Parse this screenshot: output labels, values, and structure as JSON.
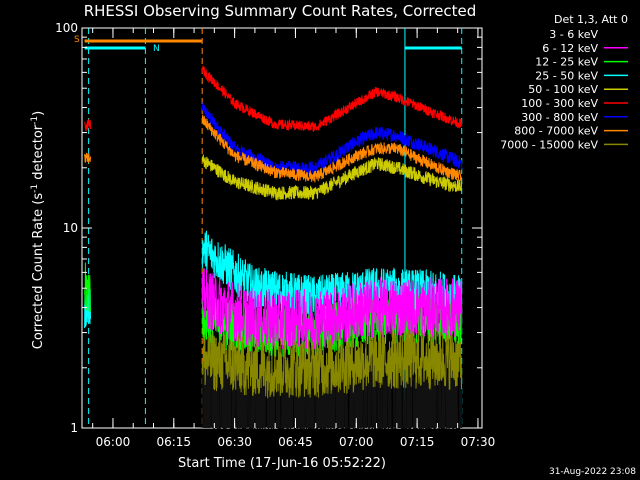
{
  "chart_data": {
    "type": "line",
    "title": "RHESSI Observing Summary Count Rates, Corrected",
    "ylabel": "Corrected Count Rate (s^-1 detector^-1)",
    "xlabel": "Start Time (17-Jun-16 05:52:22)",
    "yscale": "log",
    "ylim": [
      1,
      100
    ],
    "xlim": [
      "05:52:22",
      "07:31:00"
    ],
    "xticks": [
      "06:00",
      "06:15",
      "06:30",
      "06:45",
      "07:00",
      "07:15",
      "07:30"
    ],
    "yticks": [
      "1",
      "10",
      "100"
    ],
    "legend_title": "Det 1,3, Att 0",
    "legend_position": "top-right",
    "series": [
      {
        "name": "3 - 6 keV",
        "color": "#000000",
        "x": [
          "06:22",
          "06:35",
          "06:50",
          "07:05",
          "07:20",
          "07:26"
        ],
        "values": [
          1,
          1,
          1,
          1,
          1,
          1
        ]
      },
      {
        "name": "6 - 12 keV",
        "color": "#ff00ff",
        "x": [
          "06:22",
          "06:35",
          "06:50",
          "07:05",
          "07:20",
          "07:26"
        ],
        "values": [
          4.5,
          3.5,
          3.5,
          4,
          4,
          4
        ]
      },
      {
        "name": "12 - 25 keV",
        "color": "#00ff00",
        "x": [
          "05:53",
          "06:22",
          "06:35",
          "06:50",
          "07:05",
          "07:20",
          "07:26"
        ],
        "values": [
          5,
          3.5,
          3,
          3,
          3.5,
          3.5,
          3.5
        ]
      },
      {
        "name": "25 - 50 keV",
        "color": "#00ffff",
        "x": [
          "05:53",
          "06:22",
          "06:35",
          "06:50",
          "07:05",
          "07:20",
          "07:26"
        ],
        "values": [
          4,
          8,
          5,
          4.5,
          5,
          4.8,
          4.5
        ]
      },
      {
        "name": "50 - 100 keV",
        "color": "#cccc00",
        "x": [
          "06:22",
          "06:30",
          "06:40",
          "06:50",
          "07:00",
          "07:05",
          "07:10",
          "07:20",
          "07:26"
        ],
        "values": [
          22,
          17,
          15,
          15,
          19,
          21,
          20,
          17,
          16
        ]
      },
      {
        "name": "100 - 300 keV",
        "color": "#ff0000",
        "x": [
          "05:53",
          "06:22",
          "06:30",
          "06:40",
          "06:50",
          "07:00",
          "07:05",
          "07:10",
          "07:20",
          "07:26"
        ],
        "values": [
          32,
          62,
          42,
          33,
          32,
          42,
          48,
          45,
          37,
          33
        ]
      },
      {
        "name": "300 - 800 keV",
        "color": "#0000ff",
        "x": [
          "06:22",
          "06:30",
          "06:40",
          "06:50",
          "07:00",
          "07:05",
          "07:10",
          "07:20",
          "07:26"
        ],
        "values": [
          40,
          25,
          20,
          20,
          27,
          30,
          29,
          24,
          21
        ]
      },
      {
        "name": "800 - 7000 keV",
        "color": "#ff8800",
        "x": [
          "05:53",
          "06:22",
          "06:30",
          "06:40",
          "06:50",
          "07:00",
          "07:05",
          "07:10",
          "07:20",
          "07:26"
        ],
        "values": [
          22,
          35,
          23,
          19,
          18,
          23,
          25,
          25,
          20,
          18
        ]
      },
      {
        "name": "7000 - 15000 keV",
        "color": "#888800",
        "x": [
          "06:22",
          "06:35",
          "06:50",
          "07:05",
          "07:20",
          "07:26"
        ],
        "values": [
          2.2,
          2,
          2,
          2.2,
          2.2,
          2.2
        ]
      }
    ],
    "annotations": [
      "S",
      "N"
    ],
    "footer": "31-Aug-2022 23:08"
  }
}
